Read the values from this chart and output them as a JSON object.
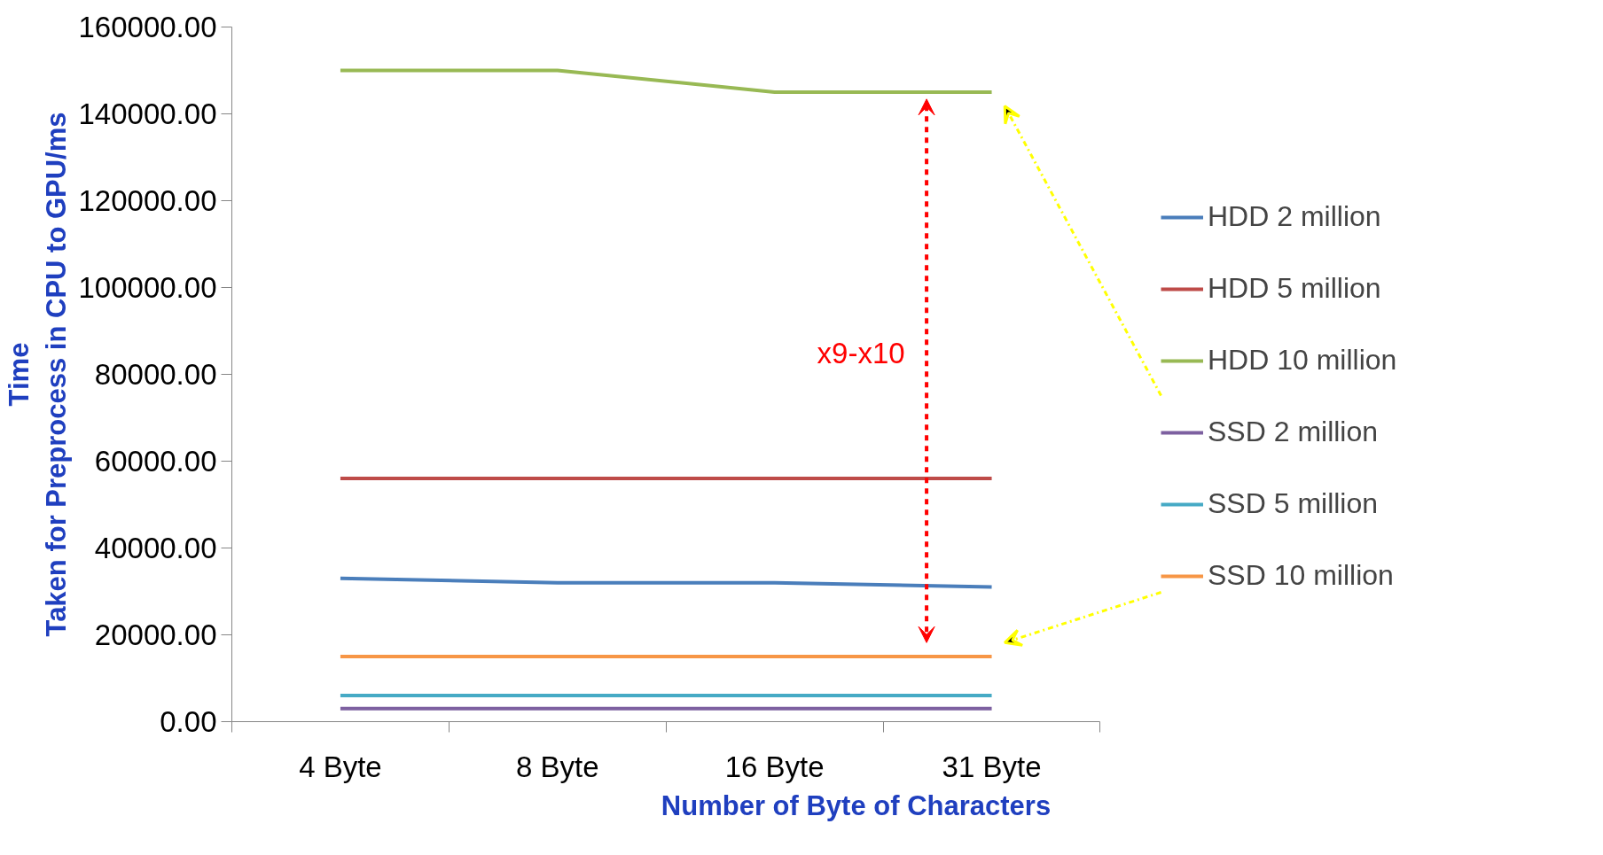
{
  "chart_data": {
    "type": "line",
    "xlabel": "Number of Byte of Characters",
    "ylabel": "Time\nTaken for Preprocess in CPU to GPU/ms",
    "categories": [
      "4 Byte",
      "8 Byte",
      "16 Byte",
      "31 Byte"
    ],
    "series": [
      {
        "name": "HDD 2 million",
        "color": "#4a7ebb",
        "values": [
          33000,
          32000,
          32000,
          31000
        ]
      },
      {
        "name": "HDD 5 million",
        "color": "#be4b48",
        "values": [
          56000,
          56000,
          56000,
          56000
        ]
      },
      {
        "name": "HDD 10 million",
        "color": "#98b954",
        "values": [
          150000,
          150000,
          145000,
          145000
        ]
      },
      {
        "name": "SSD 2 million",
        "color": "#7d60a0",
        "values": [
          3000,
          3000,
          3000,
          3000
        ]
      },
      {
        "name": "SSD 5 million",
        "color": "#46aac5",
        "values": [
          6000,
          6000,
          6000,
          6000
        ]
      },
      {
        "name": "SSD 10 million",
        "color": "#f79646",
        "values": [
          15000,
          15000,
          15000,
          15000
        ]
      }
    ],
    "ylim": [
      0,
      160000
    ],
    "yticks": [
      {
        "value": 0,
        "label": "0.00"
      },
      {
        "value": 20000,
        "label": "20000.00"
      },
      {
        "value": 40000,
        "label": "40000.00"
      },
      {
        "value": 60000,
        "label": "60000.00"
      },
      {
        "value": 80000,
        "label": "80000.00"
      },
      {
        "value": 100000,
        "label": "100000.00"
      },
      {
        "value": 120000,
        "label": "120000.00"
      },
      {
        "value": 140000,
        "label": "140000.00"
      },
      {
        "value": 160000,
        "label": "160000.00"
      }
    ],
    "annotations": [
      "x9-x10"
    ],
    "legend": "right",
    "grid": false,
    "marker": "none",
    "line_style": "solid"
  }
}
